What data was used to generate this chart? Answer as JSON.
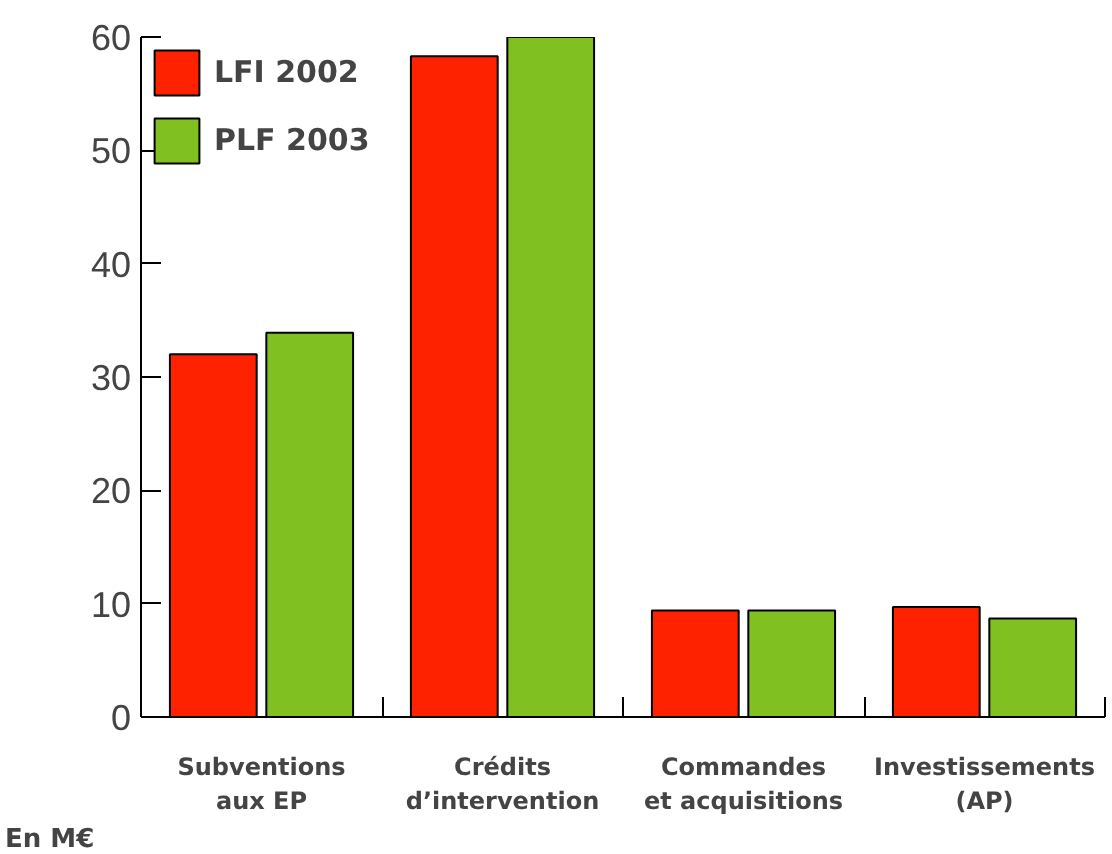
{
  "chart_data": {
    "type": "bar",
    "categories": [
      "Subventions\naux EP",
      "Crédits\nd’intervention",
      "Commandes\net acquisitions",
      "Investissements\n(AP)"
    ],
    "series": [
      {
        "name": "LFI 2002",
        "color": "#ff2200",
        "values": [
          32.0,
          58.3,
          9.4,
          9.7
        ]
      },
      {
        "name": "PLF 2003",
        "color": "#80c020",
        "values": [
          33.9,
          60.0,
          9.4,
          8.7
        ]
      }
    ],
    "ylim": [
      0,
      60
    ],
    "yticks": [
      0,
      10,
      20,
      30,
      40,
      50,
      60
    ],
    "grid": false,
    "legend": "top left",
    "annotations": [
      "En M€"
    ]
  }
}
